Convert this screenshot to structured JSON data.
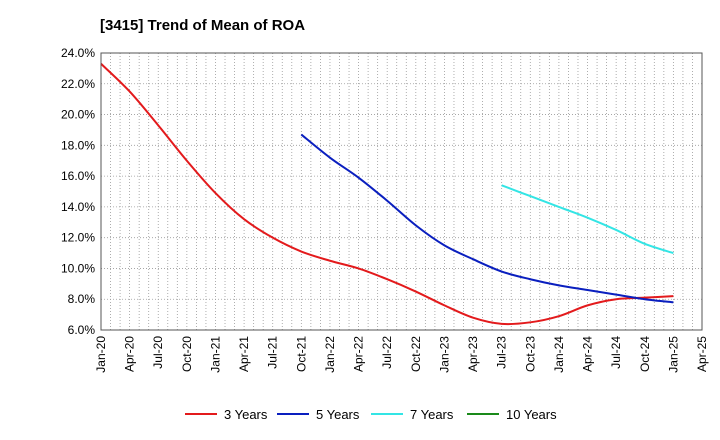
{
  "chart_data": {
    "type": "line",
    "title": "[3415]  Trend of Mean of ROA",
    "xlabel": "",
    "ylabel": "",
    "ylim": [
      6.0,
      24.0
    ],
    "y_ticks": [
      "24.0%",
      "22.0%",
      "20.0%",
      "18.0%",
      "16.0%",
      "14.0%",
      "12.0%",
      "10.0%",
      "8.0%",
      "6.0%"
    ],
    "y_tick_values": [
      24,
      22,
      20,
      18,
      16,
      14,
      12,
      10,
      8,
      6
    ],
    "x_ticks": [
      "Jan-20",
      "Apr-20",
      "Jul-20",
      "Oct-20",
      "Jan-21",
      "Apr-21",
      "Jul-21",
      "Oct-21",
      "Jan-22",
      "Apr-22",
      "Jul-22",
      "Oct-22",
      "Jan-23",
      "Apr-23",
      "Jul-23",
      "Oct-23",
      "Jan-24",
      "Apr-24",
      "Jul-24",
      "Oct-24",
      "Jan-25",
      "Apr-25"
    ],
    "grid": true,
    "legend_position": "bottom",
    "series": [
      {
        "name": "3 Years",
        "color": "#e31a1c",
        "x": [
          "Jan-20",
          "Apr-20",
          "Jul-20",
          "Oct-20",
          "Jan-21",
          "Apr-21",
          "Jul-21",
          "Oct-21",
          "Jan-22",
          "Apr-22",
          "Jul-22",
          "Oct-22",
          "Jan-23",
          "Apr-23",
          "Jul-23",
          "Oct-23",
          "Jan-24",
          "Apr-24",
          "Jul-24",
          "Oct-24",
          "Jan-25"
        ],
        "values": [
          23.3,
          21.5,
          19.3,
          17.0,
          14.9,
          13.2,
          12.0,
          11.1,
          10.5,
          10.0,
          9.3,
          8.5,
          7.6,
          6.8,
          6.4,
          6.5,
          6.9,
          7.6,
          8.0,
          8.1,
          8.2
        ]
      },
      {
        "name": "5 Years",
        "color": "#0a1fbf",
        "x": [
          "Oct-21",
          "Jan-22",
          "Apr-22",
          "Jul-22",
          "Oct-22",
          "Jan-23",
          "Apr-23",
          "Jul-23",
          "Oct-23",
          "Jan-24",
          "Apr-24",
          "Jul-24",
          "Oct-24",
          "Jan-25"
        ],
        "values": [
          18.7,
          17.2,
          15.9,
          14.4,
          12.8,
          11.5,
          10.6,
          9.8,
          9.3,
          8.9,
          8.6,
          8.3,
          8.0,
          7.8
        ]
      },
      {
        "name": "7 Years",
        "color": "#33e5e5",
        "x": [
          "Jul-23",
          "Oct-23",
          "Jan-24",
          "Apr-24",
          "Jul-24",
          "Oct-24",
          "Jan-25"
        ],
        "values": [
          15.4,
          14.7,
          14.0,
          13.3,
          12.5,
          11.6,
          11.0
        ]
      },
      {
        "name": "10 Years",
        "color": "#1a8a1a",
        "x": [],
        "values": []
      }
    ]
  }
}
